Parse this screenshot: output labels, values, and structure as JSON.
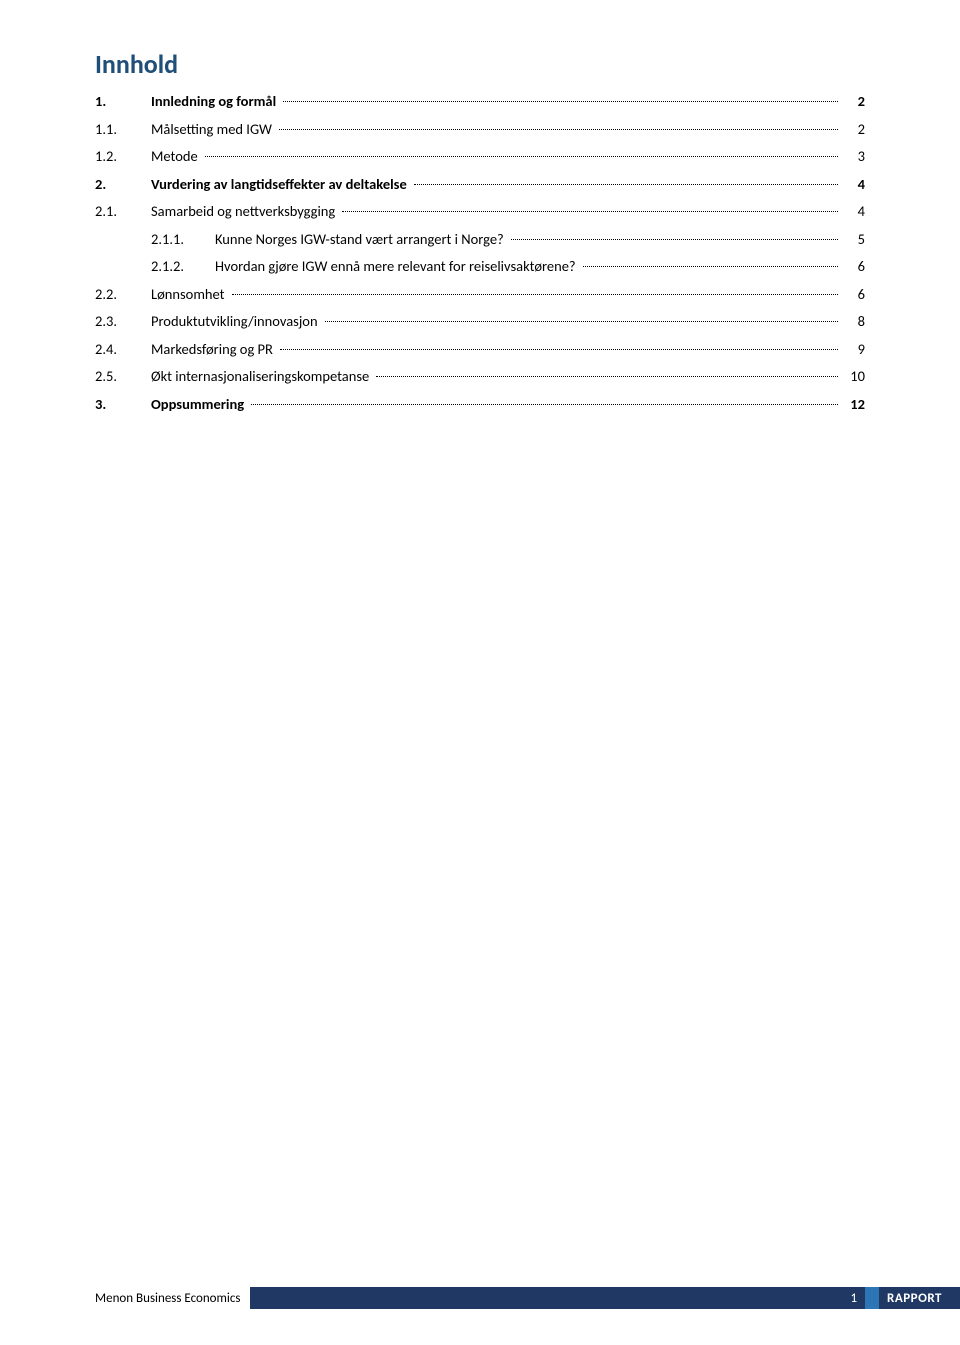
{
  "title": {
    "text": "Innhold",
    "color": "#1f4e79",
    "fontsize": 26,
    "fontweight": "bold"
  },
  "toc": {
    "leader_color": "#000000",
    "entries": [
      {
        "level": 1,
        "num": "1.",
        "label": "Innledning og formål",
        "page": "2"
      },
      {
        "level": 2,
        "num": "1.1.",
        "label": "Målsetting med IGW",
        "page": "2"
      },
      {
        "level": 2,
        "num": "1.2.",
        "label": "Metode",
        "page": "3"
      },
      {
        "level": 1,
        "num": "2.",
        "label": "Vurdering av langtidseffekter av deltakelse",
        "page": "4"
      },
      {
        "level": 2,
        "num": "2.1.",
        "label": "Samarbeid og nettverksbygging",
        "page": "4"
      },
      {
        "level": 3,
        "num": "2.1.1.",
        "label": "Kunne Norges IGW-stand vært arrangert i Norge?",
        "page": "5"
      },
      {
        "level": 3,
        "num": "2.1.2.",
        "label": "Hvordan gjøre IGW ennå mere relevant for reiselivsaktørene?",
        "page": "6"
      },
      {
        "level": 2,
        "num": "2.2.",
        "label": "Lønnsomhet",
        "page": "6"
      },
      {
        "level": 2,
        "num": "2.3.",
        "label": "Produktutvikling/innovasjon",
        "page": "8"
      },
      {
        "level": 2,
        "num": "2.4.",
        "label": "Markedsføring og PR",
        "page": "9"
      },
      {
        "level": 2,
        "num": "2.5.",
        "label": "Økt internasjonaliseringskompetanse",
        "page": "10"
      },
      {
        "level": 1,
        "num": "3.",
        "label": "Oppsummering",
        "page": "12"
      }
    ]
  },
  "footer": {
    "left_text": "Menon Business Economics",
    "page_num": "1",
    "right_text": "RAPPORT",
    "bar_color": "#1f3864",
    "sep_color": "#2e75b6",
    "text_color_left": "#000000",
    "text_color_right": "#ffffff"
  }
}
